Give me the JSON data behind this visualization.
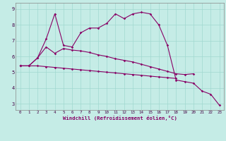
{
  "xlabel": "Windchill (Refroidissement éolien,°C)",
  "background_color": "#c5ece6",
  "grid_color": "#a0d8d0",
  "line_color": "#880066",
  "x": [
    0,
    1,
    2,
    3,
    4,
    5,
    6,
    7,
    8,
    9,
    10,
    11,
    12,
    13,
    14,
    15,
    16,
    17,
    18,
    19,
    20,
    21,
    22,
    23
  ],
  "line1": [
    5.4,
    5.4,
    5.9,
    7.1,
    8.7,
    6.7,
    6.6,
    7.5,
    7.8,
    7.8,
    8.1,
    8.7,
    8.4,
    8.7,
    8.8,
    8.7,
    8.0,
    6.7,
    4.5,
    4.4,
    4.3,
    3.8,
    3.6,
    2.9
  ],
  "line2": [
    5.4,
    5.4,
    5.9,
    6.6,
    6.2,
    6.5,
    6.4,
    6.35,
    6.25,
    6.1,
    6.0,
    5.85,
    5.75,
    5.65,
    5.5,
    5.35,
    5.2,
    5.05,
    4.9,
    4.85,
    4.9,
    null,
    null,
    null
  ],
  "line3": [
    5.4,
    5.4,
    5.4,
    5.35,
    5.3,
    5.25,
    5.2,
    5.15,
    5.1,
    5.05,
    5.0,
    4.95,
    4.9,
    4.85,
    4.8,
    4.75,
    4.7,
    4.65,
    4.6,
    null,
    null,
    null,
    null,
    null
  ],
  "ylim": [
    2.6,
    9.4
  ],
  "yticks": [
    3,
    4,
    5,
    6,
    7,
    8,
    9
  ],
  "xticks": [
    0,
    1,
    2,
    3,
    4,
    5,
    6,
    7,
    8,
    9,
    10,
    11,
    12,
    13,
    14,
    15,
    16,
    17,
    18,
    19,
    20,
    21,
    22,
    23
  ]
}
